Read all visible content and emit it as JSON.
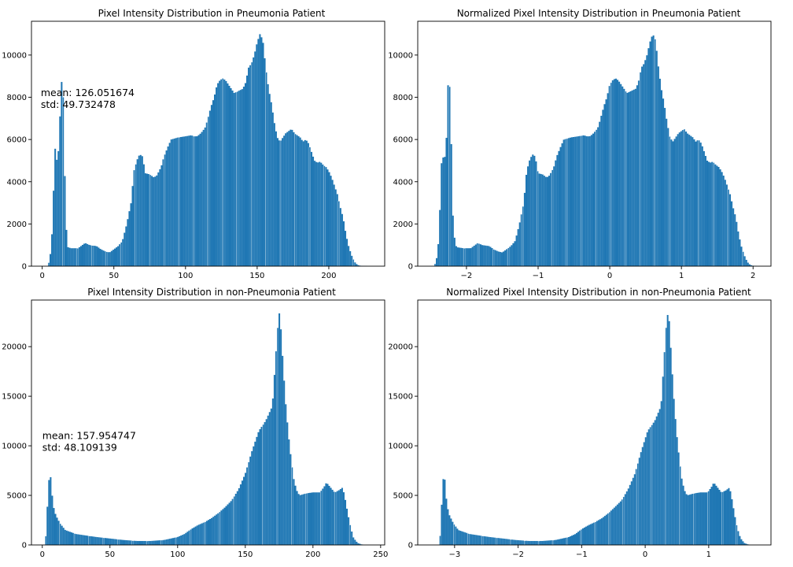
{
  "chart_data": [
    {
      "type": "bar",
      "title": "Pixel Intensity Distribution in Pneumonia Patient",
      "xlabel": "",
      "ylabel": "",
      "xlim": [
        -7.5,
        239
      ],
      "ylim": [
        0,
        11600
      ],
      "xticks": [
        0,
        50,
        100,
        150,
        200
      ],
      "xtick_labels": [
        "0",
        "50",
        "100",
        "150",
        "200"
      ],
      "yticks": [
        0,
        2000,
        4000,
        6000,
        8000,
        10000
      ],
      "ytick_labels": [
        "0",
        "2000",
        "4000",
        "6000",
        "8000",
        "10000"
      ],
      "annotation": {
        "lines": [
          "mean: 126.051674",
          "std: 49.732478"
        ],
        "x": -1,
        "y": 8050
      },
      "color": "#1f77b4",
      "profile": [
        [
          4,
          0
        ],
        [
          5,
          300
        ],
        [
          6,
          700
        ],
        [
          7,
          1700
        ],
        [
          8,
          3700
        ],
        [
          9,
          5600
        ],
        [
          10,
          5000
        ],
        [
          11,
          5200
        ],
        [
          12,
          6000
        ],
        [
          13,
          8500
        ],
        [
          14,
          8900
        ],
        [
          15,
          7600
        ],
        [
          16,
          3500
        ],
        [
          17,
          1600
        ],
        [
          18,
          900
        ],
        [
          20,
          850
        ],
        [
          25,
          850
        ],
        [
          30,
          1100
        ],
        [
          33,
          1000
        ],
        [
          38,
          950
        ],
        [
          41,
          800
        ],
        [
          44,
          700
        ],
        [
          47,
          650
        ],
        [
          50,
          800
        ],
        [
          53,
          950
        ],
        [
          56,
          1200
        ],
        [
          59,
          2000
        ],
        [
          62,
          3000
        ],
        [
          64,
          4500
        ],
        [
          66,
          5000
        ],
        [
          68,
          5300
        ],
        [
          70,
          5200
        ],
        [
          72,
          4400
        ],
        [
          75,
          4350
        ],
        [
          78,
          4200
        ],
        [
          80,
          4300
        ],
        [
          83,
          4700
        ],
        [
          85,
          5200
        ],
        [
          88,
          5700
        ],
        [
          90,
          6000
        ],
        [
          95,
          6100
        ],
        [
          100,
          6150
        ],
        [
          104,
          6200
        ],
        [
          106,
          6150
        ],
        [
          108,
          6150
        ],
        [
          110,
          6250
        ],
        [
          112,
          6400
        ],
        [
          114,
          6600
        ],
        [
          116,
          7100
        ],
        [
          118,
          7600
        ],
        [
          120,
          8000
        ],
        [
          122,
          8600
        ],
        [
          124,
          8800
        ],
        [
          126,
          8900
        ],
        [
          128,
          8800
        ],
        [
          130,
          8600
        ],
        [
          132,
          8400
        ],
        [
          134,
          8200
        ],
        [
          137,
          8300
        ],
        [
          140,
          8400
        ],
        [
          142,
          8700
        ],
        [
          144,
          9400
        ],
        [
          146,
          9600
        ],
        [
          148,
          10000
        ],
        [
          150,
          10600
        ],
        [
          152,
          11000
        ],
        [
          154,
          10700
        ],
        [
          156,
          9400
        ],
        [
          158,
          8400
        ],
        [
          160,
          7700
        ],
        [
          162,
          6800
        ],
        [
          164,
          6100
        ],
        [
          166,
          5900
        ],
        [
          168,
          6100
        ],
        [
          170,
          6300
        ],
        [
          172,
          6400
        ],
        [
          174,
          6500
        ],
        [
          176,
          6300
        ],
        [
          178,
          6200
        ],
        [
          180,
          6100
        ],
        [
          182,
          5900
        ],
        [
          184,
          6000
        ],
        [
          186,
          5800
        ],
        [
          188,
          5400
        ],
        [
          190,
          5000
        ],
        [
          192,
          4900
        ],
        [
          194,
          4950
        ],
        [
          196,
          4800
        ],
        [
          198,
          4700
        ],
        [
          200,
          4500
        ],
        [
          202,
          4200
        ],
        [
          204,
          3800
        ],
        [
          206,
          3400
        ],
        [
          208,
          2800
        ],
        [
          210,
          2300
        ],
        [
          212,
          1500
        ],
        [
          214,
          900
        ],
        [
          216,
          500
        ],
        [
          218,
          200
        ],
        [
          220,
          60
        ],
        [
          222,
          20
        ],
        [
          226,
          10
        ],
        [
          229,
          0
        ]
      ]
    },
    {
      "type": "bar",
      "title": "Normalized Pixel Intensity Distribution in Pneumonia Patient",
      "xlabel": "",
      "ylabel": "",
      "xlim": [
        -2.68,
        2.25
      ],
      "ylim": [
        0,
        11600
      ],
      "xticks": [
        -2,
        -1,
        0,
        1,
        2
      ],
      "xtick_labels": [
        "−2",
        "−1",
        "0",
        "1",
        "2"
      ],
      "yticks": [
        0,
        2000,
        4000,
        6000,
        8000,
        10000
      ],
      "ytick_labels": [
        "0",
        "2000",
        "4000",
        "6000",
        "8000",
        "10000"
      ],
      "color": "#1f77b4",
      "profile": [
        [
          -2.45,
          0
        ],
        [
          -2.42,
          300
        ],
        [
          -2.4,
          700
        ],
        [
          -2.38,
          1700
        ],
        [
          -2.36,
          3700
        ],
        [
          -2.34,
          5600
        ],
        [
          -2.32,
          5000
        ],
        [
          -2.3,
          5200
        ],
        [
          -2.28,
          6000
        ],
        [
          -2.26,
          8500
        ],
        [
          -2.24,
          8900
        ],
        [
          -2.22,
          7600
        ],
        [
          -2.2,
          3500
        ],
        [
          -2.18,
          1600
        ],
        [
          -2.14,
          900
        ],
        [
          -2.04,
          850
        ],
        [
          -1.94,
          850
        ],
        [
          -1.84,
          1100
        ],
        [
          -1.78,
          1000
        ],
        [
          -1.68,
          950
        ],
        [
          -1.62,
          800
        ],
        [
          -1.56,
          700
        ],
        [
          -1.5,
          650
        ],
        [
          -1.44,
          800
        ],
        [
          -1.38,
          950
        ],
        [
          -1.32,
          1200
        ],
        [
          -1.26,
          2000
        ],
        [
          -1.2,
          3000
        ],
        [
          -1.16,
          4500
        ],
        [
          -1.12,
          5000
        ],
        [
          -1.08,
          5300
        ],
        [
          -1.04,
          5200
        ],
        [
          -1.0,
          4400
        ],
        [
          -0.94,
          4350
        ],
        [
          -0.88,
          4200
        ],
        [
          -0.84,
          4300
        ],
        [
          -0.78,
          4700
        ],
        [
          -0.74,
          5200
        ],
        [
          -0.68,
          5700
        ],
        [
          -0.64,
          6000
        ],
        [
          -0.54,
          6100
        ],
        [
          -0.44,
          6150
        ],
        [
          -0.36,
          6200
        ],
        [
          -0.32,
          6150
        ],
        [
          -0.28,
          6150
        ],
        [
          -0.24,
          6250
        ],
        [
          -0.2,
          6400
        ],
        [
          -0.16,
          6600
        ],
        [
          -0.12,
          7100
        ],
        [
          -0.08,
          7600
        ],
        [
          -0.04,
          8000
        ],
        [
          0.0,
          8600
        ],
        [
          0.04,
          8800
        ],
        [
          0.08,
          8900
        ],
        [
          0.12,
          8800
        ],
        [
          0.16,
          8600
        ],
        [
          0.2,
          8400
        ],
        [
          0.24,
          8200
        ],
        [
          0.3,
          8300
        ],
        [
          0.36,
          8400
        ],
        [
          0.4,
          8700
        ],
        [
          0.44,
          9400
        ],
        [
          0.48,
          9600
        ],
        [
          0.52,
          10000
        ],
        [
          0.56,
          10600
        ],
        [
          0.6,
          11000
        ],
        [
          0.64,
          10700
        ],
        [
          0.68,
          9400
        ],
        [
          0.72,
          8400
        ],
        [
          0.76,
          7700
        ],
        [
          0.8,
          6800
        ],
        [
          0.84,
          6100
        ],
        [
          0.88,
          5900
        ],
        [
          0.92,
          6100
        ],
        [
          0.96,
          6300
        ],
        [
          1.0,
          6400
        ],
        [
          1.04,
          6500
        ],
        [
          1.08,
          6300
        ],
        [
          1.12,
          6200
        ],
        [
          1.16,
          6100
        ],
        [
          1.2,
          5900
        ],
        [
          1.24,
          6000
        ],
        [
          1.28,
          5800
        ],
        [
          1.32,
          5400
        ],
        [
          1.36,
          5000
        ],
        [
          1.4,
          4900
        ],
        [
          1.44,
          4950
        ],
        [
          1.48,
          4800
        ],
        [
          1.52,
          4700
        ],
        [
          1.56,
          4500
        ],
        [
          1.6,
          4200
        ],
        [
          1.64,
          3800
        ],
        [
          1.68,
          3400
        ],
        [
          1.72,
          2800
        ],
        [
          1.76,
          2300
        ],
        [
          1.8,
          1500
        ],
        [
          1.84,
          900
        ],
        [
          1.88,
          500
        ],
        [
          1.92,
          200
        ],
        [
          1.96,
          60
        ],
        [
          2.0,
          20
        ],
        [
          2.06,
          10
        ],
        [
          2.1,
          0
        ]
      ]
    },
    {
      "type": "bar",
      "title": "Pixel Intensity Distribution in non-Pneumonia Patient",
      "xlabel": "",
      "ylabel": "",
      "xlim": [
        -8,
        253
      ],
      "ylim": [
        0,
        24700
      ],
      "xticks": [
        0,
        50,
        100,
        150,
        200,
        250
      ],
      "xtick_labels": [
        "0",
        "50",
        "100",
        "150",
        "200",
        "250"
      ],
      "yticks": [
        0,
        5000,
        10000,
        15000,
        20000
      ],
      "ytick_labels": [
        "0",
        "5000",
        "10000",
        "15000",
        "20000"
      ],
      "annotation": {
        "lines": [
          "mean: 157.954747",
          "std: 48.109139"
        ],
        "x": 0,
        "y": 10700
      },
      "color": "#1f77b4",
      "profile": [
        [
          2,
          0
        ],
        [
          3,
          1500
        ],
        [
          4,
          4500
        ],
        [
          5,
          6600
        ],
        [
          6,
          7100
        ],
        [
          7,
          5500
        ],
        [
          8,
          4000
        ],
        [
          10,
          3000
        ],
        [
          13,
          2200
        ],
        [
          17,
          1500
        ],
        [
          25,
          1100
        ],
        [
          40,
          800
        ],
        [
          50,
          650
        ],
        [
          60,
          500
        ],
        [
          70,
          400
        ],
        [
          80,
          400
        ],
        [
          90,
          500
        ],
        [
          100,
          800
        ],
        [
          105,
          1100
        ],
        [
          110,
          1600
        ],
        [
          115,
          2000
        ],
        [
          120,
          2300
        ],
        [
          125,
          2700
        ],
        [
          130,
          3200
        ],
        [
          135,
          3800
        ],
        [
          140,
          4500
        ],
        [
          145,
          5600
        ],
        [
          150,
          7200
        ],
        [
          155,
          9500
        ],
        [
          160,
          11500
        ],
        [
          165,
          12500
        ],
        [
          170,
          14000
        ],
        [
          172,
          18000
        ],
        [
          174,
          22000
        ],
        [
          175,
          23500
        ],
        [
          176,
          22500
        ],
        [
          178,
          18000
        ],
        [
          180,
          14000
        ],
        [
          182,
          11000
        ],
        [
          184,
          8500
        ],
        [
          186,
          6500
        ],
        [
          188,
          5500
        ],
        [
          190,
          5000
        ],
        [
          195,
          5200
        ],
        [
          200,
          5300
        ],
        [
          205,
          5300
        ],
        [
          208,
          5800
        ],
        [
          210,
          6300
        ],
        [
          213,
          5800
        ],
        [
          216,
          5300
        ],
        [
          219,
          5500
        ],
        [
          222,
          5800
        ],
        [
          224,
          4500
        ],
        [
          226,
          3000
        ],
        [
          228,
          1700
        ],
        [
          230,
          700
        ],
        [
          233,
          200
        ],
        [
          236,
          50
        ],
        [
          240,
          0
        ]
      ]
    },
    {
      "type": "bar",
      "title": "Normalized Pixel Intensity Distribution in non-Pneumonia Patient",
      "xlabel": "",
      "ylabel": "",
      "xlim": [
        -3.58,
        1.98
      ],
      "ylim": [
        0,
        24700
      ],
      "xticks": [
        -3,
        -2,
        -1,
        0,
        1
      ],
      "xtick_labels": [
        "−3",
        "−2",
        "−1",
        "0",
        "1"
      ],
      "yticks": [
        0,
        5000,
        10000,
        15000,
        20000
      ],
      "ytick_labels": [
        "0",
        "5000",
        "10000",
        "15000",
        "20000"
      ],
      "color": "#1f77b4",
      "profile": [
        [
          -3.24,
          0
        ],
        [
          -3.22,
          1500
        ],
        [
          -3.2,
          4500
        ],
        [
          -3.18,
          6600
        ],
        [
          -3.16,
          7100
        ],
        [
          -3.14,
          5500
        ],
        [
          -3.12,
          4000
        ],
        [
          -3.08,
          3000
        ],
        [
          -3.02,
          2200
        ],
        [
          -2.94,
          1500
        ],
        [
          -2.76,
          1100
        ],
        [
          -2.45,
          800
        ],
        [
          -2.24,
          650
        ],
        [
          -2.04,
          500
        ],
        [
          -1.83,
          400
        ],
        [
          -1.62,
          400
        ],
        [
          -1.41,
          500
        ],
        [
          -1.2,
          800
        ],
        [
          -1.1,
          1100
        ],
        [
          -1.0,
          1600
        ],
        [
          -0.89,
          2000
        ],
        [
          -0.79,
          2300
        ],
        [
          -0.68,
          2700
        ],
        [
          -0.58,
          3200
        ],
        [
          -0.48,
          3800
        ],
        [
          -0.37,
          4500
        ],
        [
          -0.27,
          5600
        ],
        [
          -0.16,
          7200
        ],
        [
          -0.06,
          9500
        ],
        [
          0.04,
          11500
        ],
        [
          0.15,
          12500
        ],
        [
          0.25,
          14000
        ],
        [
          0.29,
          18000
        ],
        [
          0.33,
          22000
        ],
        [
          0.36,
          23500
        ],
        [
          0.38,
          22500
        ],
        [
          0.42,
          18000
        ],
        [
          0.46,
          14000
        ],
        [
          0.5,
          11000
        ],
        [
          0.54,
          8500
        ],
        [
          0.58,
          6500
        ],
        [
          0.62,
          5500
        ],
        [
          0.66,
          5000
        ],
        [
          0.77,
          5200
        ],
        [
          0.87,
          5300
        ],
        [
          0.98,
          5300
        ],
        [
          1.04,
          5800
        ],
        [
          1.08,
          6300
        ],
        [
          1.14,
          5800
        ],
        [
          1.2,
          5300
        ],
        [
          1.27,
          5500
        ],
        [
          1.33,
          5800
        ],
        [
          1.37,
          4500
        ],
        [
          1.41,
          3000
        ],
        [
          1.45,
          1700
        ],
        [
          1.5,
          700
        ],
        [
          1.56,
          200
        ],
        [
          1.62,
          50
        ],
        [
          1.7,
          0
        ]
      ]
    }
  ]
}
